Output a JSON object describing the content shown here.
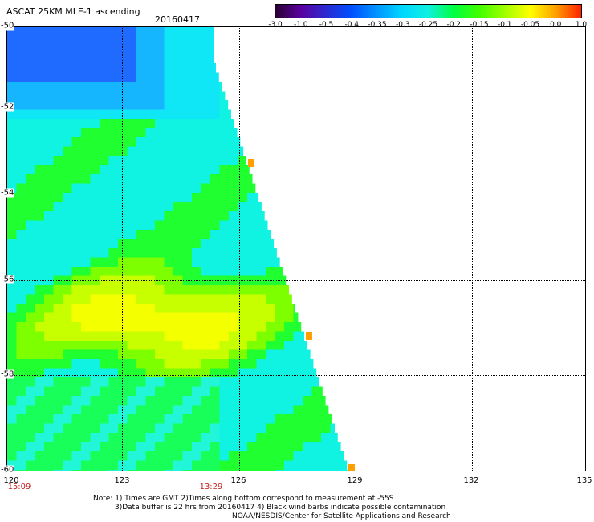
{
  "header": {
    "title": "ASCAT 25KM MLE-1 ascending",
    "date": "20160417"
  },
  "colorbar": {
    "labels": [
      "-3.0",
      "-1.0",
      "-0.5",
      "-0.4",
      "-0.35",
      "-0.3",
      "-0.25",
      "-0.2",
      "-0.15",
      "-0.1",
      "-0.05",
      "0.0",
      "1.0"
    ],
    "colors": [
      "#2a0030",
      "#5a00a0",
      "#2b2bd0",
      "#0050ff",
      "#0096ff",
      "#00d8ff",
      "#10f0e0",
      "#00ff40",
      "#40ff00",
      "#a0ff00",
      "#ffff00",
      "#ffa000",
      "#ff2000"
    ]
  },
  "axes": {
    "lat_ticks": [
      "-50",
      "-52",
      "-54",
      "-56",
      "-58",
      "-60"
    ],
    "lon_ticks": [
      "120",
      "123",
      "126",
      "129",
      "132",
      "135"
    ],
    "time_labels": [
      "15:09",
      "13:29"
    ]
  },
  "notes": {
    "line1": "Note: 1) Times are GMT 2)Times along bottom correspond to measurement at -55S",
    "line2": "3)Data buffer is 22 hrs from 20160417 4) Black wind barbs indicate possible contamination",
    "line3": "NOAA/NESDIS/Center for Satellite Applications and Research"
  }
}
